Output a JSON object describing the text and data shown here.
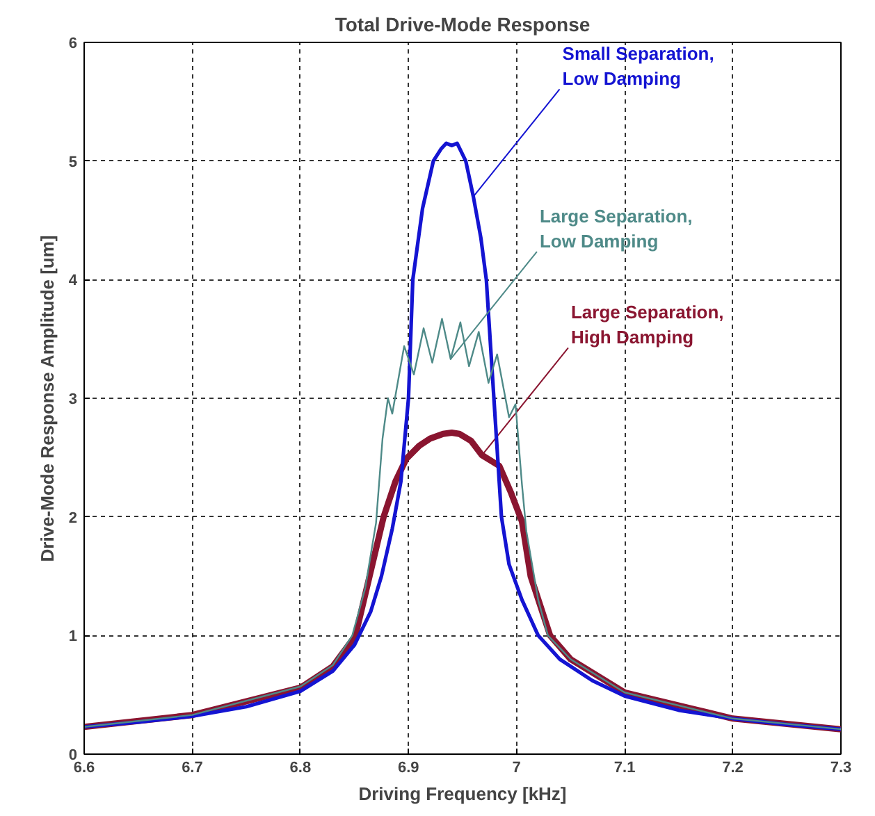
{
  "chart_data": {
    "type": "line",
    "title": "Total Drive-Mode Response",
    "xlabel": "Driving Frequency [kHz]",
    "ylabel": "Drive-Mode Response Amplitude [um]",
    "xlim": [
      6.6,
      7.3
    ],
    "ylim": [
      0,
      6
    ],
    "xticks": [
      6.6,
      6.7,
      6.8,
      6.9,
      7,
      7.1,
      7.2,
      7.3
    ],
    "yticks": [
      0,
      1,
      2,
      3,
      4,
      5,
      6
    ],
    "grid": true,
    "legend": false,
    "line_style": "solid",
    "marker": "none",
    "series": [
      {
        "name": "Small Separation,\nLow Damping",
        "color": "#1414d2",
        "x": [
          6.6,
          6.65,
          6.7,
          6.75,
          6.8,
          6.83,
          6.85,
          6.865,
          6.875,
          6.885,
          6.893,
          6.9,
          6.904,
          6.913,
          6.923,
          6.93,
          6.935,
          6.94,
          6.945,
          6.953,
          6.96,
          6.967,
          6.972,
          6.979,
          6.986,
          6.993,
          7.005,
          7.02,
          7.04,
          7.07,
          7.1,
          7.15,
          7.2,
          7.25,
          7.3
        ],
        "values": [
          0.23,
          0.27,
          0.32,
          0.4,
          0.53,
          0.7,
          0.92,
          1.2,
          1.5,
          1.9,
          2.3,
          3.0,
          4.0,
          4.6,
          5.0,
          5.1,
          5.15,
          5.13,
          5.15,
          5.0,
          4.7,
          4.35,
          4.0,
          3.0,
          2.0,
          1.6,
          1.3,
          1.0,
          0.8,
          0.62,
          0.49,
          0.37,
          0.3,
          0.25,
          0.21
        ]
      },
      {
        "name": "Large Separation,\nLow Damping",
        "color": "#4e8a88",
        "x": [
          6.6,
          6.7,
          6.8,
          6.83,
          6.848,
          6.86,
          6.87,
          6.876,
          6.881,
          6.885,
          6.896,
          6.905,
          6.914,
          6.922,
          6.931,
          6.939,
          6.948,
          6.956,
          6.965,
          6.974,
          6.982,
          6.993,
          6.999,
          7.005,
          7.009,
          7.02,
          7.029,
          7.05,
          7.1,
          7.2,
          7.3
        ],
        "values": [
          0.23,
          0.33,
          0.57,
          0.75,
          1.0,
          1.4,
          1.95,
          2.66,
          3.0,
          2.87,
          3.44,
          3.2,
          3.59,
          3.3,
          3.67,
          3.33,
          3.64,
          3.27,
          3.56,
          3.13,
          3.37,
          2.84,
          2.95,
          2.27,
          1.88,
          1.3,
          1.0,
          0.8,
          0.52,
          0.3,
          0.21
        ]
      },
      {
        "name": "Large Separation,\nHigh Damping",
        "color": "#8a1530",
        "x": [
          6.6,
          6.7,
          6.8,
          6.83,
          6.851,
          6.864,
          6.877,
          6.888,
          6.898,
          6.91,
          6.92,
          6.932,
          6.94,
          6.947,
          6.958,
          6.968,
          6.984,
          6.995,
          7.005,
          7.013,
          7.031,
          7.05,
          7.1,
          7.2,
          7.3
        ],
        "values": [
          0.23,
          0.33,
          0.56,
          0.74,
          1.0,
          1.5,
          2.0,
          2.3,
          2.49,
          2.6,
          2.66,
          2.7,
          2.71,
          2.7,
          2.64,
          2.52,
          2.43,
          2.2,
          1.96,
          1.5,
          1.0,
          0.8,
          0.52,
          0.3,
          0.21
        ]
      }
    ]
  }
}
